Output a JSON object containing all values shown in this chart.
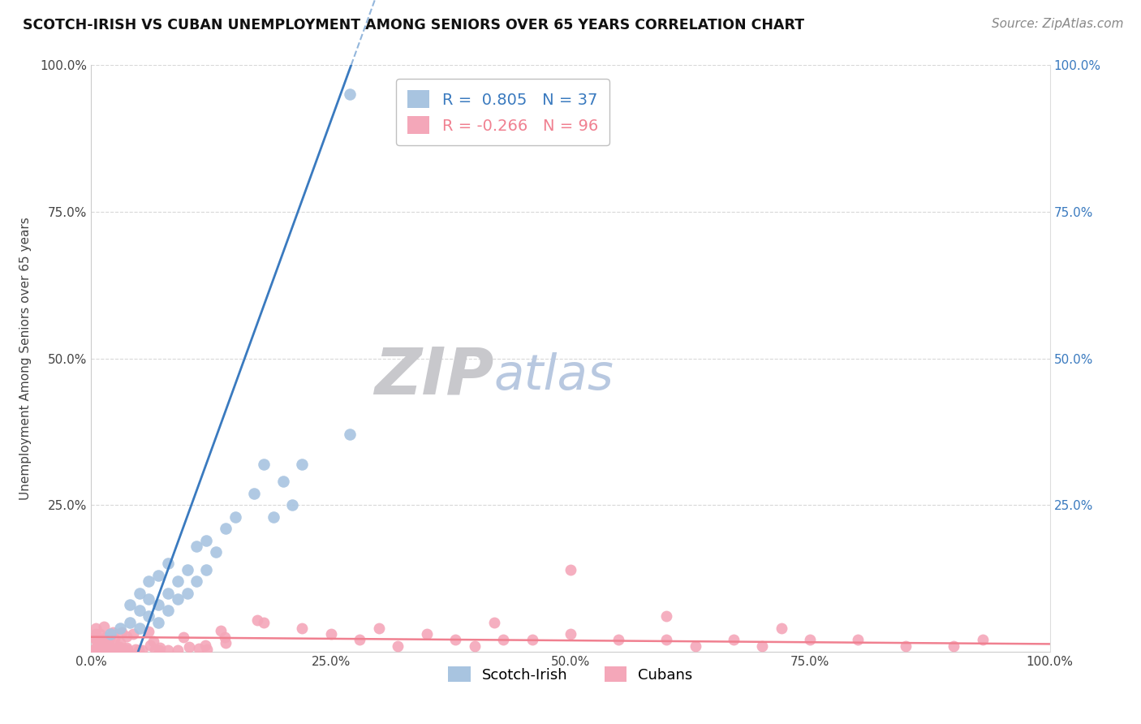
{
  "title": "SCOTCH-IRISH VS CUBAN UNEMPLOYMENT AMONG SENIORS OVER 65 YEARS CORRELATION CHART",
  "source": "Source: ZipAtlas.com",
  "ylabel": "Unemployment Among Seniors over 65 years",
  "scotch_irish_R": 0.805,
  "scotch_irish_N": 37,
  "cuban_R": -0.266,
  "cuban_N": 96,
  "scotch_irish_color": "#a8c4e0",
  "cuban_color": "#f4a7b9",
  "scotch_irish_line_color": "#3a7abf",
  "cuban_line_color": "#f08090",
  "legend_border_color": "#c0c0c0",
  "grid_color": "#d8d8d8",
  "watermark_ZIP_color": "#c8c8cc",
  "watermark_atlas_color": "#b8c8e0"
}
